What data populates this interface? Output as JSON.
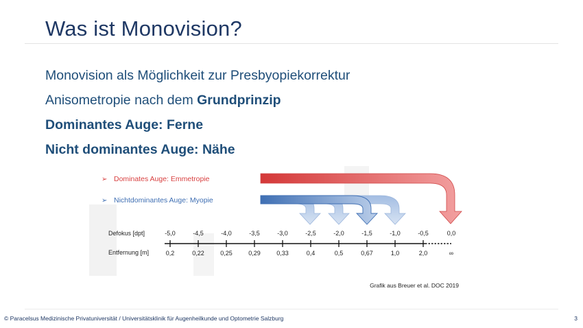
{
  "slide": {
    "title": "Was ist Monovision?",
    "bullets": [
      {
        "text": "Monovision als Möglichkeit zur Presbyopiekorrektur"
      },
      {
        "text": "Anisometropie  nach dem ",
        "bold_text": "Grundprinzip"
      },
      {
        "text": "Dominantes Auge: Ferne"
      },
      {
        "text": "Nicht dominantes Auge: Nähe"
      }
    ],
    "caption": "Grafik aus Breuer et al. DOC 2019",
    "footer": "© Paracelsus Medizinische Privatuniversität / Universitätsklinik für Augenheilkunde und Optometrie Salzburg",
    "page_number": "3"
  },
  "diagram": {
    "legend": [
      {
        "marker": "➢",
        "label": "Dominates Auge: Emmetropie",
        "color": "#e05050"
      },
      {
        "marker": "➢",
        "label": "Nichtdominantes Auge: Myopie",
        "color": "#4a78b8"
      }
    ],
    "row_labels": {
      "defocus": "Defokus [dpt]",
      "distance": "Entfernung [m]"
    },
    "defocus_ticks": [
      "-5,0",
      "-4,5",
      "-4,0",
      "-3,5",
      "-3,0",
      "-2,5",
      "-2,0",
      "-1,5",
      "-1,0",
      "-0,5",
      "0,0"
    ],
    "distance_ticks": [
      "0,2",
      "0,22",
      "0,25",
      "0,29",
      "0,33",
      "0,4",
      "0,5",
      "0,67",
      "1,0",
      "2,0",
      "∞"
    ]
  }
}
